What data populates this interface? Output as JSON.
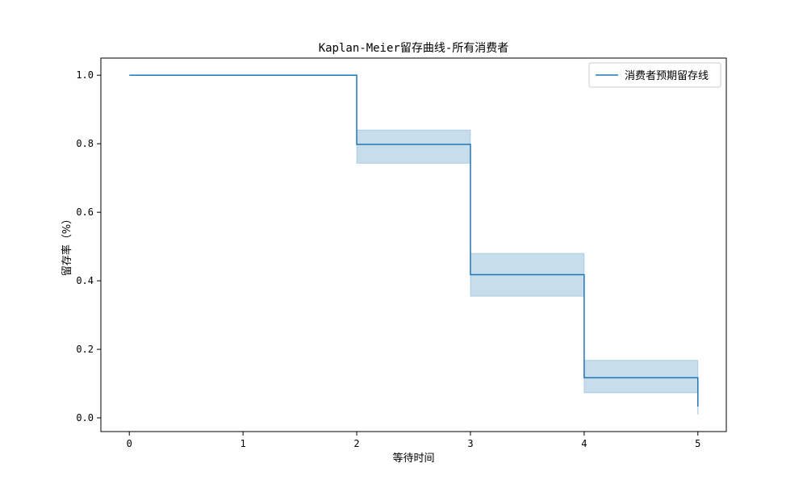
{
  "chart_data": {
    "type": "line",
    "title": "Kaplan-Meier留存曲线-所有消费者",
    "xlabel": "等待时间",
    "ylabel": "留存率（%）",
    "xlim": [
      -0.25,
      5.25
    ],
    "ylim": [
      -0.04,
      1.05
    ],
    "x_ticks": [
      0,
      1,
      2,
      3,
      4,
      5
    ],
    "x_tick_labels": [
      "0",
      "1",
      "2",
      "3",
      "4",
      "5"
    ],
    "y_ticks": [
      0.0,
      0.2,
      0.4,
      0.6,
      0.8,
      1.0
    ],
    "y_tick_labels": [
      "0.0",
      "0.2",
      "0.4",
      "0.6",
      "0.8",
      "1.0"
    ],
    "grid": false,
    "legend_position": "top-right",
    "series": [
      {
        "name": "消费者预期留存线",
        "color": "#1f77b4",
        "step": "post",
        "x": [
          0,
          2,
          3,
          4,
          5
        ],
        "y": [
          1.0,
          0.798,
          0.418,
          0.117,
          0.033
        ],
        "ci_lower": [
          1.0,
          0.743,
          0.355,
          0.073,
          0.01
        ],
        "ci_upper": [
          1.0,
          0.84,
          0.48,
          0.168,
          0.033
        ]
      }
    ]
  }
}
